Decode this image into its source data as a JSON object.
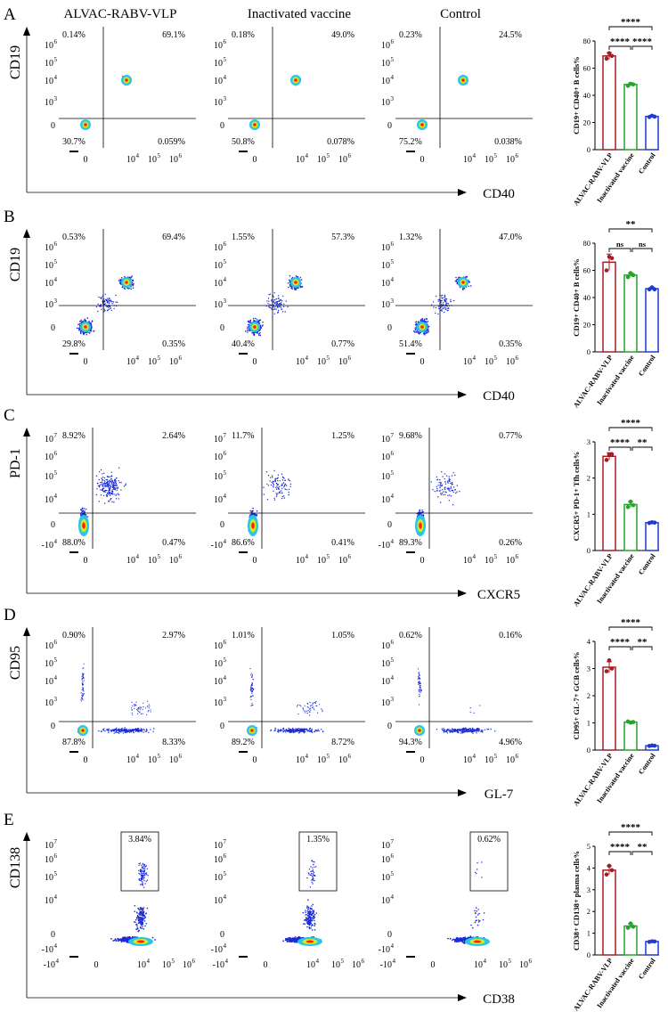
{
  "figure": {
    "group_headers": [
      "ALVAC-RABV-VLP",
      "Inactivated vaccine",
      "Control"
    ],
    "exp_labels": {
      "m1": "-10",
      "p0": "0",
      "p3": "10",
      "p4": "10",
      "p5": "10",
      "p6": "10",
      "p7": "10",
      "e3": "3",
      "e4": "4",
      "e5": "5",
      "e6": "6",
      "e7": "7",
      "em4": "4"
    },
    "colors": {
      "vlp": "#a51d22",
      "inact": "#27a22d",
      "ctrl": "#1f3bd1",
      "axis": "#000000",
      "dot_outer": "#1a2bd6",
      "dot_inner": "#ff2200"
    }
  },
  "chart_data": [
    {
      "type": "scatter",
      "panel_letter": "A",
      "xlabel": "CD40",
      "ylabel": "CD19",
      "gate": "quadrant",
      "plots": [
        {
          "group": "ALVAC-RABV-VLP",
          "quadrants": {
            "ul": "0.14%",
            "ur": "69.1%",
            "ll": "30.7%",
            "lr": "0.059%"
          }
        },
        {
          "group": "Inactivated vaccine",
          "quadrants": {
            "ul": "0.18%",
            "ur": "49.0%",
            "ll": "50.8%",
            "lr": "0.078%"
          }
        },
        {
          "group": "Control",
          "quadrants": {
            "ul": "0.23%",
            "ur": "24.5%",
            "ll": "75.2%",
            "lr": "0.038%"
          }
        }
      ],
      "bar": {
        "type": "bar",
        "ylabel": "CD19+ CD40+ B cells%",
        "yticks": [
          "0",
          "20",
          "40",
          "60",
          "80"
        ],
        "ylim": [
          0,
          80
        ],
        "categories": [
          "ALVAC-RABV-VLP",
          "Inactivated vaccine",
          "Control"
        ],
        "values": [
          69,
          48,
          24.5
        ],
        "errors": [
          2.5,
          1.2,
          0.8
        ],
        "points": [
          [
            67,
            71,
            69
          ],
          [
            47,
            48.5,
            48
          ],
          [
            24,
            25,
            24.3
          ]
        ],
        "sig": {
          "top": "****",
          "left": "****",
          "right": "****"
        }
      }
    },
    {
      "type": "scatter",
      "panel_letter": "B",
      "xlabel": "CD40",
      "ylabel": "CD19",
      "gate": "quadrant",
      "plots": [
        {
          "group": "ALVAC-RABV-VLP",
          "quadrants": {
            "ul": "0.53%",
            "ur": "69.4%",
            "ll": "29.8%",
            "lr": "0.35%"
          }
        },
        {
          "group": "Inactivated vaccine",
          "quadrants": {
            "ul": "1.55%",
            "ur": "57.3%",
            "ll": "40.4%",
            "lr": "0.77%"
          }
        },
        {
          "group": "Control",
          "quadrants": {
            "ul": "1.32%",
            "ur": "47.0%",
            "ll": "51.4%",
            "lr": "0.35%"
          }
        }
      ],
      "bar": {
        "type": "bar",
        "ylabel": "CD19+ CD40+ B cells%",
        "yticks": [
          "0",
          "20",
          "40",
          "60",
          "80"
        ],
        "ylim": [
          0,
          80
        ],
        "categories": [
          "ALVAC-RABV-VLP",
          "Inactivated vaccine",
          "Control"
        ],
        "values": [
          66,
          56.5,
          46.5
        ],
        "errors": [
          6,
          1.5,
          1
        ],
        "points": [
          [
            60,
            70,
            69
          ],
          [
            55,
            58,
            56.5
          ],
          [
            46,
            47.5,
            46
          ]
        ],
        "sig": {
          "top": "**",
          "left": "ns",
          "right": "ns"
        }
      }
    },
    {
      "type": "scatter",
      "panel_letter": "C",
      "xlabel": "CXCR5",
      "ylabel": "PD-1",
      "gate": "quadrant",
      "plots": [
        {
          "group": "ALVAC-RABV-VLP",
          "quadrants": {
            "ul": "8.92%",
            "ur": "2.64%",
            "ll": "88.0%",
            "lr": "0.47%"
          }
        },
        {
          "group": "Inactivated vaccine",
          "quadrants": {
            "ul": "11.7%",
            "ur": "1.25%",
            "ll": "86.6%",
            "lr": "0.41%"
          }
        },
        {
          "group": "Control",
          "quadrants": {
            "ul": "9.68%",
            "ur": "0.77%",
            "ll": "89.3%",
            "lr": "0.26%"
          }
        }
      ],
      "bar": {
        "type": "bar",
        "ylabel": "CXCR5+ PD-1+ Tfh cells%",
        "yticks": [
          "0",
          "1",
          "2",
          "3"
        ],
        "ylim": [
          0,
          3
        ],
        "categories": [
          "ALVAC-RABV-VLP",
          "Inactivated vaccine",
          "Control"
        ],
        "values": [
          2.6,
          1.27,
          0.77
        ],
        "errors": [
          0.1,
          0.08,
          0.03
        ],
        "points": [
          [
            2.5,
            2.65,
            2.66
          ],
          [
            1.2,
            1.35,
            1.25
          ],
          [
            0.76,
            0.78,
            0.77
          ]
        ],
        "sig": {
          "top": "****",
          "left": "****",
          "right": "**"
        }
      }
    },
    {
      "type": "scatter",
      "panel_letter": "D",
      "xlabel": "GL-7",
      "ylabel": "CD95",
      "gate": "quadrant",
      "plots": [
        {
          "group": "ALVAC-RABV-VLP",
          "quadrants": {
            "ul": "0.90%",
            "ur": "2.97%",
            "ll": "87.8%",
            "lr": "8.33%"
          }
        },
        {
          "group": "Inactivated vaccine",
          "quadrants": {
            "ul": "1.01%",
            "ur": "1.05%",
            "ll": "89.2%",
            "lr": "8.72%"
          }
        },
        {
          "group": "Control",
          "quadrants": {
            "ul": "0.62%",
            "ur": "0.16%",
            "ll": "94.3%",
            "lr": "4.96%"
          }
        }
      ],
      "bar": {
        "type": "bar",
        "ylabel": "CD95+ GL-7+ GCB cells%",
        "yticks": [
          "0",
          "1",
          "2",
          "3",
          "4"
        ],
        "ylim": [
          0,
          4
        ],
        "categories": [
          "ALVAC-RABV-VLP",
          "Inactivated vaccine",
          "Control"
        ],
        "values": [
          3.05,
          1.03,
          0.16
        ],
        "errors": [
          0.2,
          0.04,
          0.02
        ],
        "points": [
          [
            2.9,
            3.3,
            3.0
          ],
          [
            1.05,
            1.01,
            1.03
          ],
          [
            0.15,
            0.17,
            0.16
          ]
        ],
        "sig": {
          "top": "****",
          "left": "****",
          "right": "**"
        }
      }
    },
    {
      "type": "scatter",
      "panel_letter": "E",
      "xlabel": "CD38",
      "ylabel": "CD138",
      "gate": "box",
      "plots": [
        {
          "group": "ALVAC-RABV-VLP",
          "quadrants": {
            "box": "3.84%"
          }
        },
        {
          "group": "Inactivated vaccine",
          "quadrants": {
            "box": "1.35%"
          }
        },
        {
          "group": "Control",
          "quadrants": {
            "box": "0.62%"
          }
        }
      ],
      "bar": {
        "type": "bar",
        "ylabel": "CD38+ CD138+ plasma cells%",
        "yticks": [
          "0",
          "1",
          "2",
          "3",
          "4",
          "5"
        ],
        "ylim": [
          0,
          5
        ],
        "categories": [
          "ALVAC-RABV-VLP",
          "Inactivated vaccine",
          "Control"
        ],
        "values": [
          3.9,
          1.33,
          0.62
        ],
        "errors": [
          0.2,
          0.1,
          0.02
        ],
        "points": [
          [
            3.7,
            4.1,
            3.9
          ],
          [
            1.25,
            1.45,
            1.3
          ],
          [
            0.6,
            0.63,
            0.62
          ]
        ],
        "sig": {
          "top": "****",
          "left": "****",
          "right": "**"
        }
      }
    }
  ]
}
